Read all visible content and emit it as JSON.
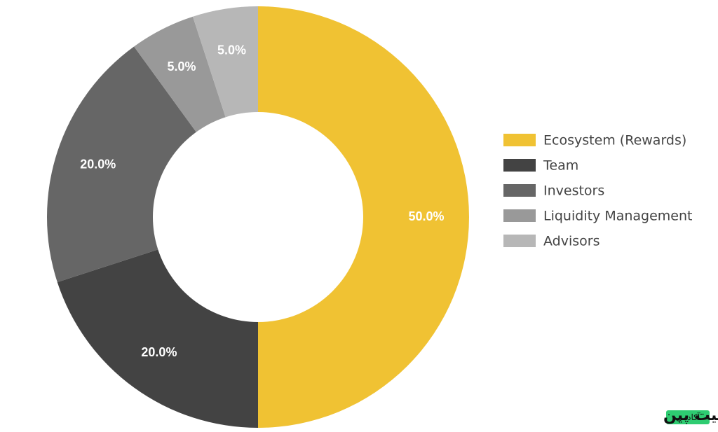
{
  "chart_data": {
    "type": "donut",
    "categories": [
      "Ecosystem (Rewards)",
      "Team",
      "Investors",
      "Liquidity Management",
      "Advisors"
    ],
    "values": [
      50,
      20,
      20,
      5,
      5
    ],
    "value_labels": [
      "50.0%",
      "20.0%",
      "20.0%",
      "5.0%",
      "5.0%"
    ],
    "colors": [
      "#f0c233",
      "#434343",
      "#666666",
      "#999999",
      "#b7b7b7"
    ],
    "legend": "right"
  },
  "watermark": {
    "brand": "بیت پین",
    "badge": "آکادمی"
  }
}
